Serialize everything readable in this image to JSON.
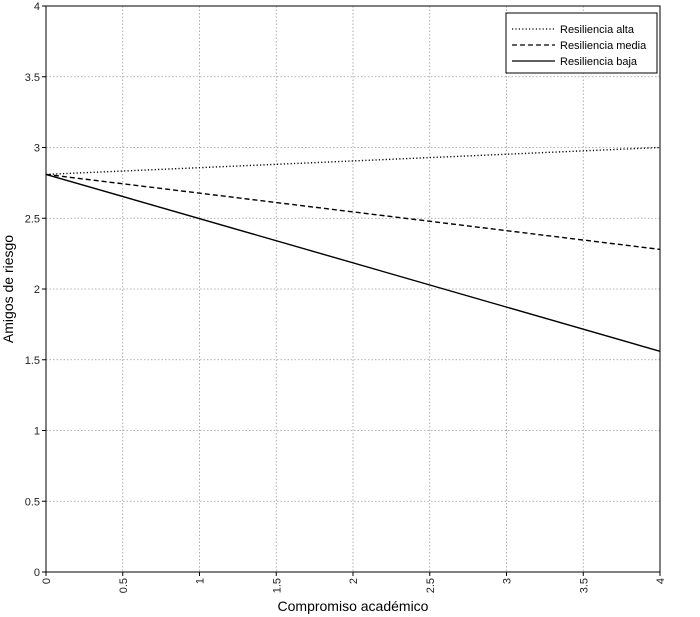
{
  "chart_data": {
    "type": "line",
    "title": "",
    "xlabel": "Compromiso académico",
    "ylabel": "Amigos de riesgo",
    "xlim": [
      0,
      4
    ],
    "ylim": [
      0,
      4
    ],
    "x_ticks": [
      0,
      0.5,
      1,
      1.5,
      2,
      2.5,
      3,
      3.5,
      4
    ],
    "x_tick_labels": [
      "0",
      "0.5",
      "1",
      "1.5",
      "2",
      "2.5",
      "3",
      "3.5",
      "4"
    ],
    "y_ticks": [
      0,
      0.5,
      1,
      1.5,
      2,
      2.5,
      3,
      3.5,
      4
    ],
    "y_tick_labels": [
      "0",
      "0.5",
      "1",
      "1.5",
      "2",
      "2.5",
      "3",
      "3.5",
      "4"
    ],
    "grid": true,
    "legend_position": "top-right",
    "series": [
      {
        "name": "Resiliencia alta",
        "style": "dotted",
        "color": "#000000",
        "x": [
          0,
          4
        ],
        "y": [
          2.81,
          3.0
        ]
      },
      {
        "name": "Resiliencia media",
        "style": "dashed",
        "color": "#000000",
        "x": [
          0,
          4
        ],
        "y": [
          2.81,
          2.28
        ]
      },
      {
        "name": "Resiliencia baja",
        "style": "solid",
        "color": "#000000",
        "x": [
          0,
          4
        ],
        "y": [
          2.81,
          1.56
        ]
      }
    ]
  }
}
